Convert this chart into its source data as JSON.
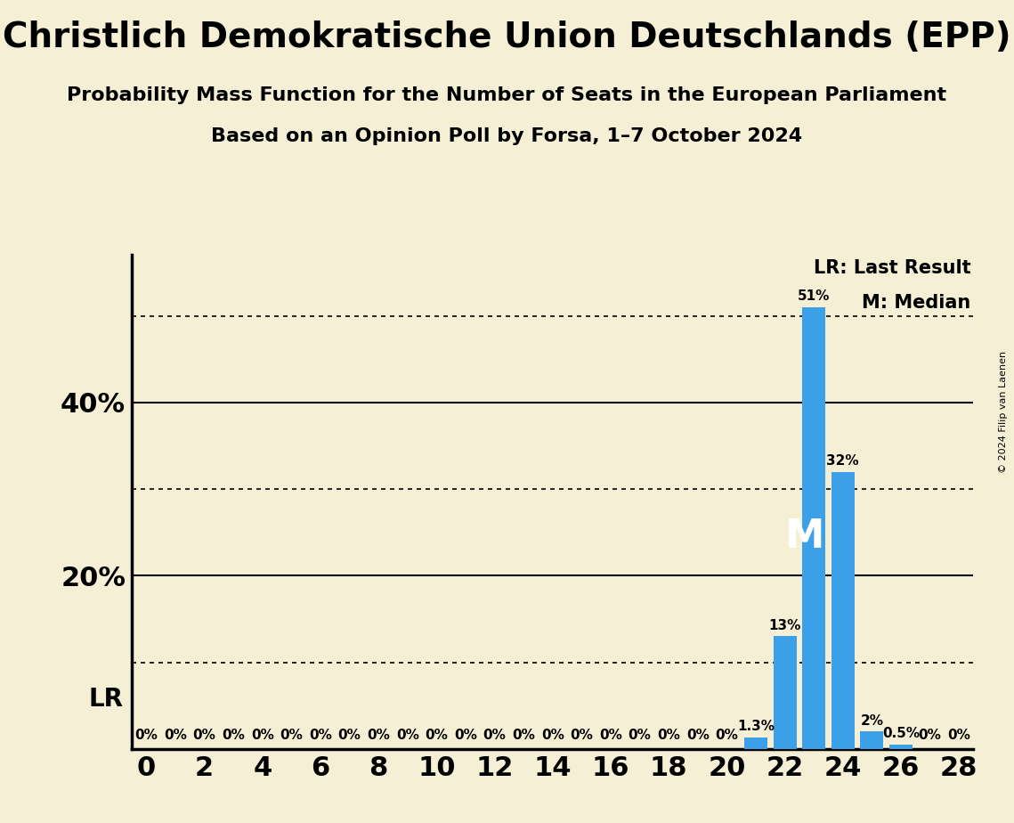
{
  "title": "Christlich Demokratische Union Deutschlands (EPP)",
  "subtitle1": "Probability Mass Function for the Number of Seats in the European Parliament",
  "subtitle2": "Based on an Opinion Poll by Forsa, 1–7 October 2024",
  "copyright": "© 2024 Filip van Laenen",
  "background_color": "#f5f0d5",
  "bar_color": "#3ca0e8",
  "seats": [
    0,
    1,
    2,
    3,
    4,
    5,
    6,
    7,
    8,
    9,
    10,
    11,
    12,
    13,
    14,
    15,
    16,
    17,
    18,
    19,
    20,
    21,
    22,
    23,
    24,
    25,
    26,
    27,
    28
  ],
  "probabilities": [
    0,
    0,
    0,
    0,
    0,
    0,
    0,
    0,
    0,
    0,
    0,
    0,
    0,
    0,
    0,
    0,
    0,
    0,
    0,
    0,
    0,
    1.3,
    13,
    51,
    32,
    2,
    0.5,
    0,
    0
  ],
  "last_result_seat": 23,
  "median_seat": 23,
  "xlim": [
    -0.5,
    28.5
  ],
  "ylim": [
    0,
    57
  ],
  "solid_lines": [
    20,
    40
  ],
  "dotted_lines": [
    10,
    30,
    50
  ],
  "ytick_positions": [
    20,
    40
  ],
  "ytick_labels": [
    "20%",
    "40%"
  ],
  "lr_ytick_label": "LR",
  "lr_ytick_value": 5.7,
  "legend_lr": "LR: Last Result",
  "legend_m": "M: Median",
  "title_fontsize": 28,
  "subtitle_fontsize": 16,
  "bar_label_fontsize": 11,
  "tick_fontsize": 22,
  "legend_fontsize": 15,
  "zero_label_fontsize": 11,
  "m_fontsize": 32,
  "lr_axis_fontsize": 20
}
